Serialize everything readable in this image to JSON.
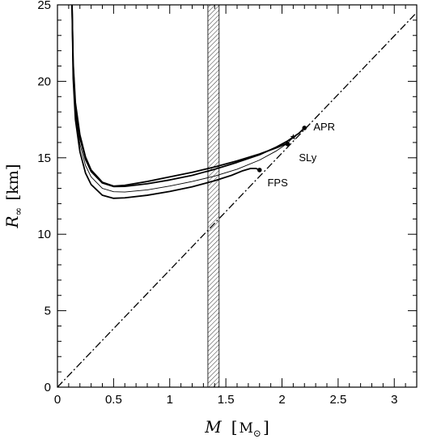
{
  "chart_data": {
    "type": "line",
    "title": "",
    "xlabel": {
      "symbol": "M",
      "unit": "M",
      "unit_subscript": "⊙"
    },
    "ylabel": {
      "symbol": "R",
      "subscript": "∞",
      "unit": "km"
    },
    "xlim": [
      0,
      3.2
    ],
    "ylim": [
      0,
      25
    ],
    "x_ticks": [
      0,
      0.5,
      1,
      1.5,
      2,
      2.5,
      3
    ],
    "x_tick_labels": [
      "0",
      "0.5",
      "1",
      "1.5",
      "2",
      "2.5",
      "3"
    ],
    "y_ticks": [
      0,
      5,
      10,
      15,
      20,
      25
    ],
    "y_tick_labels": [
      "0",
      "5",
      "10",
      "15",
      "20",
      "25"
    ],
    "grid": false,
    "band": {
      "x_min": 1.34,
      "x_max": 1.44,
      "pattern": "hatched"
    },
    "reference_line": {
      "style": "dash-dot",
      "points": [
        {
          "x": 0,
          "y": 0
        },
        {
          "x": 3.2,
          "y": 24.5
        }
      ]
    },
    "series": [
      {
        "name": "APR",
        "style": "thick",
        "endpoint_marker": "dot",
        "points": [
          {
            "x": 0.13,
            "y": 25
          },
          {
            "x": 0.14,
            "y": 21
          },
          {
            "x": 0.16,
            "y": 18.3
          },
          {
            "x": 0.2,
            "y": 16.3
          },
          {
            "x": 0.25,
            "y": 14.9
          },
          {
            "x": 0.3,
            "y": 14.1
          },
          {
            "x": 0.4,
            "y": 13.35
          },
          {
            "x": 0.5,
            "y": 13.12
          },
          {
            "x": 0.6,
            "y": 13.13
          },
          {
            "x": 0.8,
            "y": 13.3
          },
          {
            "x": 1.0,
            "y": 13.55
          },
          {
            "x": 1.2,
            "y": 13.85
          },
          {
            "x": 1.4,
            "y": 14.25
          },
          {
            "x": 1.6,
            "y": 14.7
          },
          {
            "x": 1.8,
            "y": 15.2
          },
          {
            "x": 1.95,
            "y": 15.7
          },
          {
            "x": 2.05,
            "y": 16.1
          },
          {
            "x": 2.15,
            "y": 16.6
          },
          {
            "x": 2.2,
            "y": 16.95
          }
        ]
      },
      {
        "name": "",
        "style": "thin",
        "endpoint_marker": "star",
        "points": [
          {
            "x": 0.13,
            "y": 25
          },
          {
            "x": 0.14,
            "y": 20.6
          },
          {
            "x": 0.16,
            "y": 17.9
          },
          {
            "x": 0.2,
            "y": 15.9
          },
          {
            "x": 0.25,
            "y": 14.5
          },
          {
            "x": 0.3,
            "y": 13.75
          },
          {
            "x": 0.4,
            "y": 13.0
          },
          {
            "x": 0.5,
            "y": 12.78
          },
          {
            "x": 0.6,
            "y": 12.76
          },
          {
            "x": 0.8,
            "y": 12.9
          },
          {
            "x": 1.0,
            "y": 13.15
          },
          {
            "x": 1.2,
            "y": 13.45
          },
          {
            "x": 1.4,
            "y": 13.8
          },
          {
            "x": 1.6,
            "y": 14.25
          },
          {
            "x": 1.8,
            "y": 14.85
          },
          {
            "x": 1.95,
            "y": 15.45
          },
          {
            "x": 2.05,
            "y": 15.95
          },
          {
            "x": 2.1,
            "y": 16.35
          }
        ]
      },
      {
        "name": "SLy",
        "style": "thick",
        "endpoint_marker": "dot",
        "points": [
          {
            "x": 0.13,
            "y": 25
          },
          {
            "x": 0.14,
            "y": 21.2
          },
          {
            "x": 0.16,
            "y": 18.6
          },
          {
            "x": 0.2,
            "y": 16.5
          },
          {
            "x": 0.25,
            "y": 15.05
          },
          {
            "x": 0.3,
            "y": 14.2
          },
          {
            "x": 0.4,
            "y": 13.4
          },
          {
            "x": 0.5,
            "y": 13.15
          },
          {
            "x": 0.6,
            "y": 13.2
          },
          {
            "x": 0.8,
            "y": 13.45
          },
          {
            "x": 1.0,
            "y": 13.75
          },
          {
            "x": 1.2,
            "y": 14.05
          },
          {
            "x": 1.4,
            "y": 14.4
          },
          {
            "x": 1.6,
            "y": 14.8
          },
          {
            "x": 1.8,
            "y": 15.25
          },
          {
            "x": 1.95,
            "y": 15.65
          },
          {
            "x": 2.03,
            "y": 15.9
          },
          {
            "x": 2.05,
            "y": 15.9
          }
        ]
      },
      {
        "name": "FPS",
        "style": "thick",
        "endpoint_marker": "dot",
        "points": [
          {
            "x": 0.13,
            "y": 25
          },
          {
            "x": 0.14,
            "y": 20.2
          },
          {
            "x": 0.16,
            "y": 17.5
          },
          {
            "x": 0.2,
            "y": 15.4
          },
          {
            "x": 0.25,
            "y": 14.0
          },
          {
            "x": 0.3,
            "y": 13.25
          },
          {
            "x": 0.4,
            "y": 12.55
          },
          {
            "x": 0.5,
            "y": 12.35
          },
          {
            "x": 0.6,
            "y": 12.38
          },
          {
            "x": 0.8,
            "y": 12.55
          },
          {
            "x": 1.0,
            "y": 12.8
          },
          {
            "x": 1.2,
            "y": 13.1
          },
          {
            "x": 1.4,
            "y": 13.5
          },
          {
            "x": 1.55,
            "y": 13.85
          },
          {
            "x": 1.65,
            "y": 14.15
          },
          {
            "x": 1.72,
            "y": 14.3
          },
          {
            "x": 1.77,
            "y": 14.3
          },
          {
            "x": 1.8,
            "y": 14.2
          }
        ]
      }
    ],
    "annotations": [
      {
        "text": "APR",
        "x": 2.28,
        "y": 17.0
      },
      {
        "text": "SLy",
        "x": 2.15,
        "y": 15.0
      },
      {
        "text": "FPS",
        "x": 1.87,
        "y": 13.35
      }
    ]
  }
}
